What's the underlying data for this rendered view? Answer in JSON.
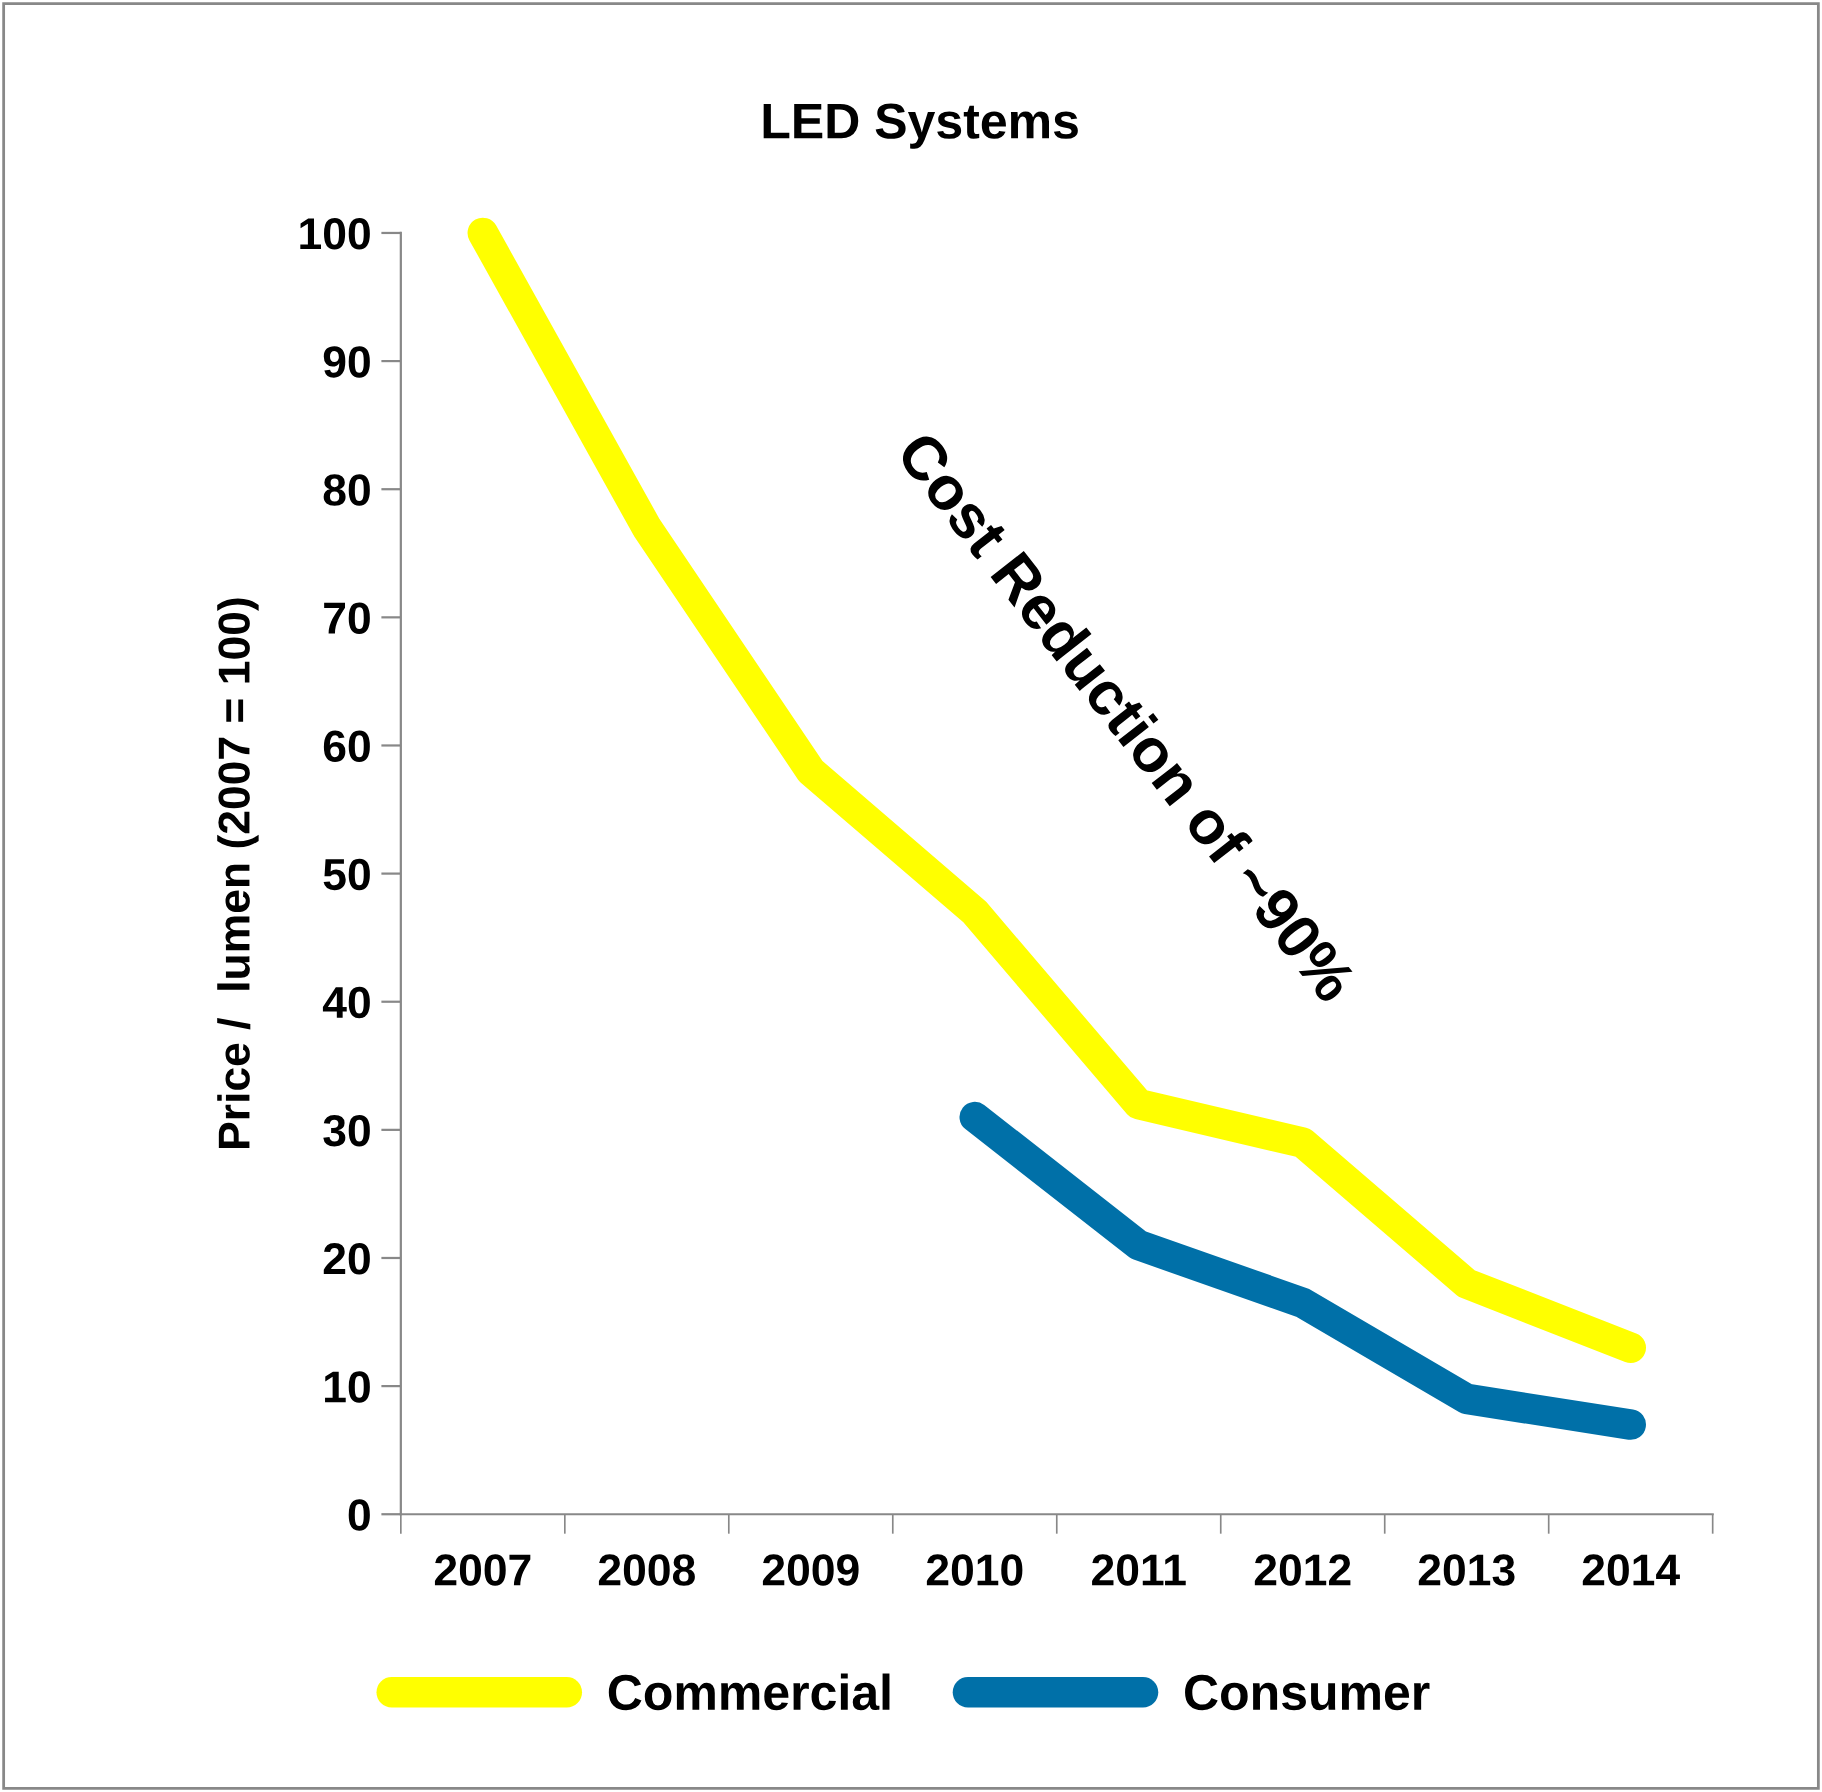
{
  "chart_data": {
    "type": "line",
    "title": "LED Systems",
    "ylabel": "Price /  lumen (2007 = 100)",
    "categories": [
      "2007",
      "2008",
      "2009",
      "2010",
      "2011",
      "2012",
      "2013",
      "2014"
    ],
    "series": [
      {
        "name": "Commercial",
        "color": "#ffff00",
        "values": [
          100,
          77,
          58,
          47,
          32,
          29,
          18,
          13
        ]
      },
      {
        "name": "Consumer",
        "color": "#0070a8",
        "values": [
          null,
          null,
          null,
          31,
          21,
          16.5,
          9,
          7
        ]
      }
    ],
    "ylim": [
      0,
      100
    ],
    "yticks": [
      0,
      10,
      20,
      30,
      40,
      50,
      60,
      70,
      80,
      90,
      100
    ],
    "annotations": [
      "Cost Reduction of ~90%"
    ],
    "grid": false,
    "legend": "bottom",
    "line_style": "solid"
  }
}
